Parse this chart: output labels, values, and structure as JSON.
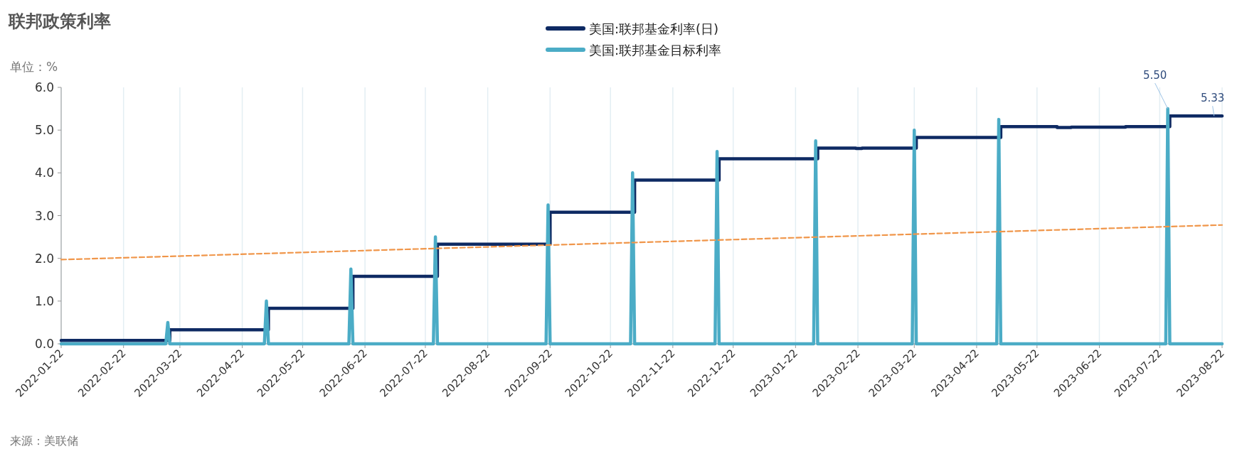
{
  "chart_data": {
    "type": "line",
    "title": "联邦政策利率",
    "ylabel": "单位：%",
    "xlim": [
      "2022-01-22",
      "2023-08-22"
    ],
    "xticks": [
      "2022-01-22",
      "2022-02-22",
      "2022-03-22",
      "2022-04-22",
      "2022-05-22",
      "2022-06-22",
      "2022-07-22",
      "2022-08-22",
      "2022-09-22",
      "2022-10-22",
      "2022-11-22",
      "2022-12-22",
      "2023-01-22",
      "2023-02-22",
      "2023-03-22",
      "2023-04-22",
      "2023-05-22",
      "2023-06-22",
      "2023-07-22",
      "2023-08-22"
    ],
    "ylim": [
      0,
      6
    ],
    "yticks": [
      {
        "value": 0,
        "label": "0.0"
      },
      {
        "value": 1,
        "label": "1.0"
      },
      {
        "value": 2,
        "label": "2.0"
      },
      {
        "value": 3,
        "label": "3.0"
      },
      {
        "value": 4,
        "label": "4.0"
      },
      {
        "value": 5,
        "label": "5.0"
      },
      {
        "value": 6,
        "label": "6.0"
      }
    ],
    "grid": "x",
    "legend": "top",
    "series": [
      {
        "name": "美国:联邦基金利率(日)",
        "type": "step",
        "color": "#0e2a63",
        "x": [
          "2022-01-22",
          "2022-03-17",
          "2022-05-05",
          "2022-06-16",
          "2022-07-28",
          "2022-09-22",
          "2022-11-03",
          "2022-12-15",
          "2023-02-02",
          "2023-02-21",
          "2023-02-24",
          "2023-03-23",
          "2023-05-04",
          "2023-06-01",
          "2023-06-08",
          "2023-06-30",
          "2023-07-05",
          "2023-07-27",
          "2023-08-22"
        ],
        "values": [
          0.08,
          0.33,
          0.83,
          1.58,
          2.33,
          3.08,
          3.83,
          4.33,
          4.58,
          4.57,
          4.58,
          4.83,
          5.08,
          5.06,
          5.07,
          5.07,
          5.08,
          5.33,
          5.33
        ]
      },
      {
        "name": "美国:联邦基金目标利率",
        "type": "line",
        "color": "#4bacc6",
        "x": [
          "2022-01-22",
          "2022-03-15",
          "2022-03-16",
          "2022-03-17",
          "2022-05-03",
          "2022-05-04",
          "2022-05-05",
          "2022-06-14",
          "2022-06-15",
          "2022-06-16",
          "2022-07-26",
          "2022-07-27",
          "2022-07-28",
          "2022-09-20",
          "2022-09-21",
          "2022-09-22",
          "2022-11-01",
          "2022-11-02",
          "2022-11-03",
          "2022-12-13",
          "2022-12-14",
          "2022-12-15",
          "2023-01-31",
          "2023-02-01",
          "2023-02-02",
          "2023-03-21",
          "2023-03-22",
          "2023-03-23",
          "2023-05-02",
          "2023-05-03",
          "2023-05-04",
          "2023-07-25",
          "2023-07-26",
          "2023-07-27",
          "2023-08-22"
        ],
        "values": [
          0,
          0,
          0.5,
          0,
          0,
          1.0,
          0,
          0,
          1.75,
          0,
          0,
          2.5,
          0,
          0,
          3.25,
          0,
          0,
          4.0,
          0,
          0,
          4.5,
          0,
          0,
          4.75,
          0,
          0,
          5.0,
          0,
          0,
          5.25,
          0,
          0,
          5.5,
          0,
          0
        ]
      },
      {
        "type": "line",
        "color": "#f0964a",
        "line_style": "dashed",
        "x": [
          "2022-01-22",
          "2023-08-22"
        ],
        "values": [
          1.97,
          2.78
        ]
      }
    ],
    "annotations": [
      {
        "text": "5.50",
        "x": "2023-07-26",
        "y": 5.5
      },
      {
        "text": "5.33",
        "x": "2023-08-18",
        "y": 5.33
      },
      "来源：美联储"
    ]
  }
}
